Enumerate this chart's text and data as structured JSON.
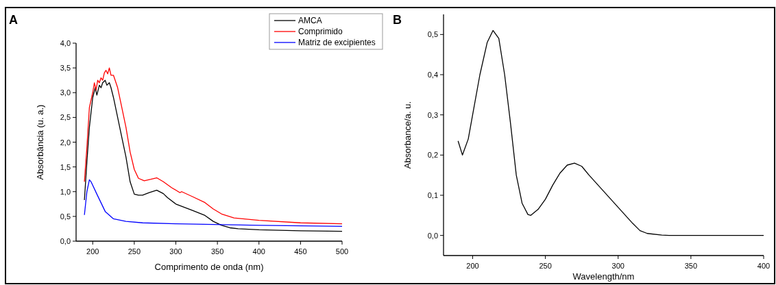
{
  "chart_data": [
    {
      "type": "line",
      "annotations": [
        "A"
      ],
      "xlabel": "Comprimento de onda (nm)",
      "ylabel": "Absorbância (u. a.)",
      "xlim": [
        180,
        500
      ],
      "xticks": [
        200,
        250,
        300,
        350,
        400,
        450,
        500
      ],
      "ylim": [
        0,
        4
      ],
      "yticks": [
        {
          "value": 0,
          "label": "0,0"
        },
        {
          "value": 0.5,
          "label": "0,5"
        },
        {
          "value": 1,
          "label": "1,0"
        },
        {
          "value": 1.5,
          "label": "1,5"
        },
        {
          "value": 2,
          "label": "2,0"
        },
        {
          "value": 2.5,
          "label": "2,5"
        },
        {
          "value": 3,
          "label": "3,0"
        },
        {
          "value": 3.5,
          "label": "3,5"
        },
        {
          "value": 4,
          "label": "4,0"
        }
      ],
      "legend": "top right",
      "series": [
        {
          "name": "AMCA",
          "color": "#000000",
          "x": [
            190,
            193,
            196,
            200,
            203,
            205,
            208,
            210,
            212,
            215,
            217,
            220,
            222,
            225,
            230,
            235,
            240,
            245,
            250,
            255,
            260,
            268,
            277,
            285,
            290,
            300,
            320,
            335,
            345,
            355,
            365,
            375,
            400,
            450,
            500
          ],
          "values": [
            0.83,
            1.6,
            2.3,
            2.9,
            3.1,
            2.95,
            3.15,
            3.1,
            3.2,
            3.25,
            3.15,
            3.2,
            3.1,
            2.9,
            2.5,
            2.1,
            1.7,
            1.2,
            0.95,
            0.93,
            0.93,
            0.98,
            1.03,
            0.96,
            0.88,
            0.75,
            0.62,
            0.52,
            0.4,
            0.32,
            0.27,
            0.25,
            0.23,
            0.21,
            0.2
          ]
        },
        {
          "name": "Comprimido",
          "color": "#ff0000",
          "x": [
            190,
            193,
            196,
            200,
            202,
            204,
            206,
            208,
            210,
            212,
            214,
            216,
            218,
            220,
            222,
            225,
            228,
            230,
            235,
            240,
            245,
            250,
            255,
            262,
            270,
            277,
            285,
            295,
            305,
            307,
            320,
            335,
            345,
            355,
            370,
            400,
            450,
            500
          ],
          "values": [
            1.2,
            1.9,
            2.7,
            3.0,
            3.2,
            3.05,
            3.25,
            3.2,
            3.3,
            3.25,
            3.4,
            3.45,
            3.38,
            3.5,
            3.35,
            3.35,
            3.2,
            3.1,
            2.7,
            2.3,
            1.8,
            1.45,
            1.27,
            1.22,
            1.25,
            1.28,
            1.2,
            1.08,
            0.98,
            1.0,
            0.9,
            0.78,
            0.65,
            0.55,
            0.47,
            0.42,
            0.37,
            0.35
          ]
        },
        {
          "name": "Matriz de excipientes",
          "color": "#0000ff",
          "x": [
            190,
            193,
            196,
            198,
            205,
            215,
            225,
            240,
            260,
            300,
            400,
            500
          ],
          "values": [
            0.53,
            1.0,
            1.24,
            1.2,
            0.95,
            0.6,
            0.45,
            0.4,
            0.37,
            0.35,
            0.32,
            0.3
          ]
        }
      ]
    },
    {
      "type": "line",
      "annotations": [
        "B"
      ],
      "xlabel": "Wavelength/nm",
      "ylabel": "Absorbance/a. u.",
      "xlim": [
        180,
        400
      ],
      "xticks": [
        200,
        250,
        300,
        350,
        400
      ],
      "ylim": [
        -0.05,
        0.55
      ],
      "yticks": [
        {
          "value": 0,
          "label": "0,0"
        },
        {
          "value": 0.1,
          "label": "0,1"
        },
        {
          "value": 0.2,
          "label": "0,2"
        },
        {
          "value": 0.3,
          "label": "0,3"
        },
        {
          "value": 0.4,
          "label": "0,4"
        },
        {
          "value": 0.5,
          "label": "0,5"
        }
      ],
      "series": [
        {
          "color": "#000000",
          "x": [
            190,
            193,
            197,
            200,
            205,
            210,
            214,
            218,
            222,
            226,
            230,
            234,
            238,
            240,
            245,
            250,
            255,
            260,
            265,
            270,
            275,
            280,
            290,
            300,
            310,
            315,
            320,
            330,
            335,
            400
          ],
          "values": [
            0.235,
            0.2,
            0.24,
            0.3,
            0.4,
            0.48,
            0.51,
            0.49,
            0.4,
            0.28,
            0.15,
            0.08,
            0.052,
            0.05,
            0.065,
            0.09,
            0.125,
            0.155,
            0.175,
            0.18,
            0.172,
            0.15,
            0.11,
            0.07,
            0.03,
            0.012,
            0.005,
            0.001,
            0,
            0
          ]
        }
      ]
    }
  ]
}
